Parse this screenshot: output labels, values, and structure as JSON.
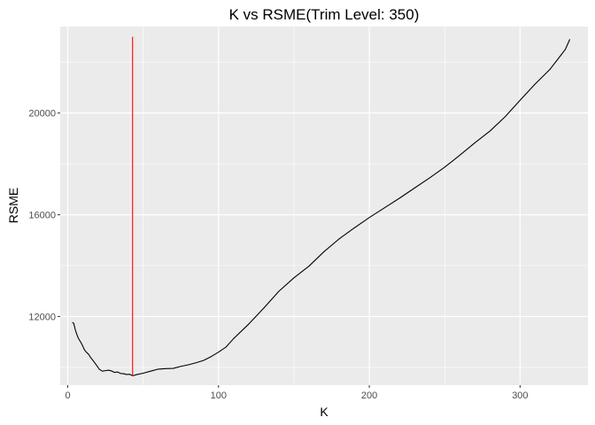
{
  "chart_data": {
    "type": "line",
    "title": "K vs RSME(Trim Level: 350)",
    "xlabel": "K",
    "ylabel": "RSME",
    "xlim": [
      -5,
      345
    ],
    "ylim": [
      9300,
      23400
    ],
    "x_ticks": [
      0,
      100,
      200,
      300
    ],
    "y_ticks": [
      12000,
      16000,
      20000
    ],
    "x_tick_labels": [
      "0",
      "100",
      "200",
      "300"
    ],
    "y_tick_labels": [
      "12000",
      "16000",
      "20000"
    ],
    "grid": true,
    "panel_background": "#ebebeb",
    "grid_color": "#ffffff",
    "series": [
      {
        "color": "#000000",
        "x": [
          3,
          4,
          5,
          6,
          7,
          8,
          9,
          10,
          11,
          12,
          13,
          14,
          15,
          17,
          19,
          21,
          23,
          25,
          27,
          29,
          31,
          33,
          35,
          37,
          39,
          41,
          43,
          46,
          50,
          55,
          60,
          65,
          70,
          75,
          80,
          85,
          90,
          95,
          100,
          105,
          110,
          120,
          130,
          140,
          150,
          160,
          170,
          180,
          190,
          200,
          210,
          220,
          230,
          240,
          250,
          260,
          270,
          280,
          290,
          300,
          310,
          320,
          330,
          333
        ],
        "y": [
          11770,
          11730,
          11480,
          11300,
          11150,
          11050,
          10950,
          10830,
          10700,
          10620,
          10560,
          10500,
          10400,
          10250,
          10090,
          9920,
          9850,
          9870,
          9890,
          9860,
          9800,
          9820,
          9760,
          9750,
          9720,
          9730,
          9670,
          9720,
          9770,
          9850,
          9930,
          9950,
          9960,
          10040,
          10100,
          10180,
          10270,
          10420,
          10600,
          10800,
          11130,
          11700,
          12330,
          12990,
          13520,
          13980,
          14550,
          15050,
          15480,
          15890,
          16270,
          16650,
          17050,
          17450,
          17870,
          18340,
          18830,
          19290,
          19850,
          20500,
          21140,
          21730,
          22500,
          22900
        ]
      }
    ],
    "vline": {
      "x": 43,
      "y_from": 9670,
      "y_to": 23000,
      "color": "#ff0000"
    }
  }
}
